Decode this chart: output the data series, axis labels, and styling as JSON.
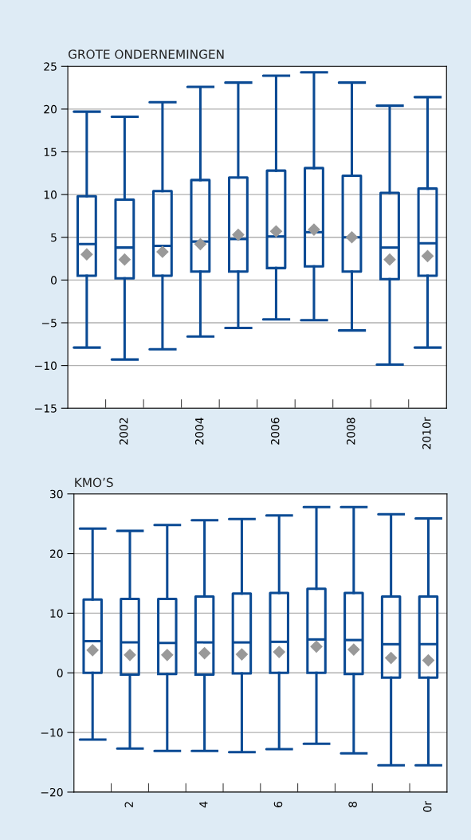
{
  "chart_data": [
    {
      "type": "box",
      "title": "GROTE ONDERNEMINGEN",
      "categories": [
        null,
        "2002",
        null,
        "2004",
        null,
        "2006",
        null,
        "2008",
        null,
        "2010r"
      ],
      "color": "#0a4a94",
      "marker": "diamond",
      "ylim": [
        -15,
        25
      ],
      "yticks": [
        -15,
        -10,
        -5,
        0,
        5,
        10,
        15,
        20,
        25
      ],
      "grid": "y",
      "legend": false,
      "boxes": [
        {
          "low": -7.9,
          "q1": 0.5,
          "median": 4.2,
          "q3": 9.8,
          "high": 19.7,
          "mean": 3.0
        },
        {
          "low": -9.3,
          "q1": 0.2,
          "median": 3.8,
          "q3": 9.4,
          "high": 19.1,
          "mean": 2.4
        },
        {
          "low": -8.1,
          "q1": 0.5,
          "median": 4.0,
          "q3": 10.4,
          "high": 20.8,
          "mean": 3.3
        },
        {
          "low": -6.6,
          "q1": 1.0,
          "median": 4.5,
          "q3": 11.7,
          "high": 22.6,
          "mean": 4.2
        },
        {
          "low": -5.6,
          "q1": 1.0,
          "median": 4.8,
          "q3": 12.0,
          "high": 23.1,
          "mean": 5.3
        },
        {
          "low": -4.6,
          "q1": 1.4,
          "median": 5.1,
          "q3": 12.8,
          "high": 23.9,
          "mean": 5.7
        },
        {
          "low": -4.7,
          "q1": 1.6,
          "median": 5.6,
          "q3": 13.1,
          "high": 24.3,
          "mean": 5.9
        },
        {
          "low": -5.9,
          "q1": 1.0,
          "median": 5.0,
          "q3": 12.2,
          "high": 23.1,
          "mean": 5.0
        },
        {
          "low": -9.9,
          "q1": 0.1,
          "median": 3.8,
          "q3": 10.2,
          "high": 20.4,
          "mean": 2.4
        },
        {
          "low": -7.9,
          "q1": 0.5,
          "median": 4.3,
          "q3": 10.7,
          "high": 21.4,
          "mean": 2.8
        }
      ]
    },
    {
      "type": "box",
      "title": "KMO’S",
      "categories": [
        null,
        "2",
        null,
        "4",
        null,
        "6",
        null,
        "8",
        null,
        "0r"
      ],
      "color": "#0a4a94",
      "marker": "diamond",
      "ylim": [
        -20,
        30
      ],
      "yticks": [
        -20,
        -10,
        0,
        10,
        20,
        30
      ],
      "grid": "y",
      "legend": false,
      "boxes": [
        {
          "low": -11.2,
          "q1": 0.0,
          "median": 5.3,
          "q3": 12.3,
          "high": 24.2,
          "mean": 3.8
        },
        {
          "low": -12.7,
          "q1": -0.3,
          "median": 5.1,
          "q3": 12.4,
          "high": 23.8,
          "mean": 3.0
        },
        {
          "low": -13.1,
          "q1": -0.2,
          "median": 5.0,
          "q3": 12.4,
          "high": 24.8,
          "mean": 3.0
        },
        {
          "low": -13.1,
          "q1": -0.3,
          "median": 5.1,
          "q3": 12.8,
          "high": 25.6,
          "mean": 3.3
        },
        {
          "low": -13.3,
          "q1": -0.1,
          "median": 5.1,
          "q3": 13.3,
          "high": 25.8,
          "mean": 3.1
        },
        {
          "low": -12.8,
          "q1": 0.0,
          "median": 5.2,
          "q3": 13.4,
          "high": 26.4,
          "mean": 3.5
        },
        {
          "low": -11.9,
          "q1": 0.0,
          "median": 5.6,
          "q3": 14.1,
          "high": 27.8,
          "mean": 4.4
        },
        {
          "low": -13.5,
          "q1": -0.2,
          "median": 5.5,
          "q3": 13.4,
          "high": 27.8,
          "mean": 3.9
        },
        {
          "low": -15.5,
          "q1": -0.8,
          "median": 4.8,
          "q3": 12.8,
          "high": 26.6,
          "mean": 2.5
        },
        {
          "low": -15.5,
          "q1": -0.8,
          "median": 4.8,
          "q3": 12.8,
          "high": 25.9,
          "mean": 2.1
        }
      ]
    }
  ]
}
